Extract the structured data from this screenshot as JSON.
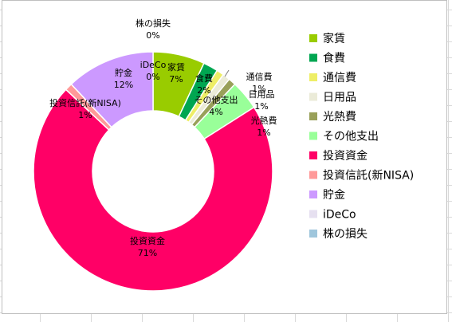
{
  "chart_data": {
    "type": "doughnut",
    "title": "",
    "legend_position": "right",
    "categories": [
      "家賃",
      "食費",
      "通信費",
      "日用品",
      "光熱費",
      "その他支出",
      "投資資金",
      "投資信託(新NISA)",
      "貯金",
      "iDeCo",
      "株の損失"
    ],
    "values": [
      7,
      2,
      1,
      1,
      1,
      4,
      71,
      1,
      12,
      0,
      0
    ],
    "data_labels": [
      "7%",
      "2%",
      "1%",
      "1%",
      "1%",
      "4%",
      "71%",
      "1%",
      "12%",
      "0%",
      "0%"
    ],
    "series": [
      {
        "name": "",
        "values": [
          7,
          2,
          1,
          1,
          1,
          4,
          71,
          1,
          12,
          0,
          0
        ]
      }
    ],
    "colors": [
      "#99cc00",
      "#00a651",
      "#eeee66",
      "#ebebd8",
      "#99a05a",
      "#99ff99",
      "#ff0066",
      "#ff9999",
      "#cc99ff",
      "#e6e0f0",
      "#9fc6dc"
    ]
  },
  "legend": {
    "labels": [
      "家賃",
      "食費",
      "通信費",
      "日用品",
      "光熱費",
      "その他支出",
      "投資資金",
      "投資信託(新NISA)",
      "貯金",
      "iDeCo",
      "株の損失"
    ]
  }
}
